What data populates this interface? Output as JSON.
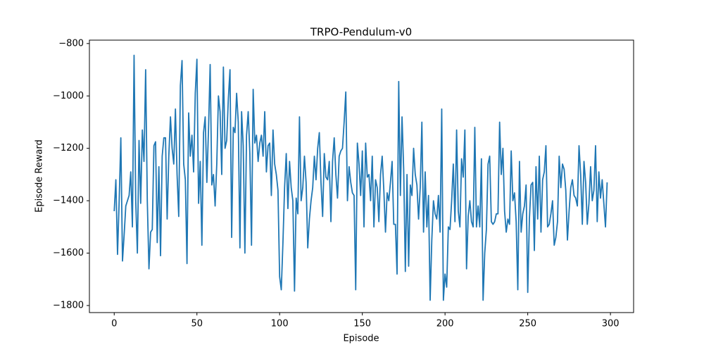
{
  "chart_data": {
    "type": "line",
    "title": "TRPO-Pendulum-v0",
    "x_label": "Episode",
    "y_label": "Episode Reward",
    "xlim": [
      -15,
      314
    ],
    "ylim": [
      -1827,
      -787
    ],
    "xticks": [
      0,
      50,
      100,
      150,
      200,
      250,
      300
    ],
    "yticks": [
      {
        "value": -1800,
        "label": "−1800"
      },
      {
        "value": -1600,
        "label": "−1600"
      },
      {
        "value": -1400,
        "label": "−1400"
      },
      {
        "value": -1200,
        "label": "−1200"
      },
      {
        "value": -1000,
        "label": "−1000"
      },
      {
        "value": -800,
        "label": "−800"
      }
    ],
    "x": [
      0,
      1,
      2,
      3,
      4,
      5,
      6,
      7,
      8,
      9,
      10,
      11,
      12,
      13,
      14,
      15,
      16,
      17,
      18,
      19,
      20,
      21,
      22,
      23,
      24,
      25,
      26,
      27,
      28,
      29,
      30,
      31,
      32,
      33,
      34,
      35,
      36,
      37,
      38,
      39,
      40,
      41,
      42,
      43,
      44,
      45,
      46,
      47,
      48,
      49,
      50,
      51,
      52,
      53,
      54,
      55,
      56,
      57,
      58,
      59,
      60,
      61,
      62,
      63,
      64,
      65,
      66,
      67,
      68,
      69,
      70,
      71,
      72,
      73,
      74,
      75,
      76,
      77,
      78,
      79,
      80,
      81,
      82,
      83,
      84,
      85,
      86,
      87,
      88,
      89,
      90,
      91,
      92,
      93,
      94,
      95,
      96,
      97,
      98,
      99,
      100,
      101,
      102,
      103,
      104,
      105,
      106,
      107,
      108,
      109,
      110,
      111,
      112,
      113,
      114,
      115,
      116,
      117,
      118,
      119,
      120,
      121,
      122,
      123,
      124,
      125,
      126,
      127,
      128,
      129,
      130,
      131,
      132,
      133,
      134,
      135,
      136,
      137,
      138,
      139,
      140,
      141,
      142,
      143,
      144,
      145,
      146,
      147,
      148,
      149,
      150,
      151,
      152,
      153,
      154,
      155,
      156,
      157,
      158,
      159,
      160,
      161,
      162,
      163,
      164,
      165,
      166,
      167,
      168,
      169,
      170,
      171,
      172,
      173,
      174,
      175,
      176,
      177,
      178,
      179,
      180,
      181,
      182,
      183,
      184,
      185,
      186,
      187,
      188,
      189,
      190,
      191,
      192,
      193,
      194,
      195,
      196,
      197,
      198,
      199,
      200,
      201,
      202,
      203,
      204,
      205,
      206,
      207,
      208,
      209,
      210,
      211,
      212,
      213,
      214,
      215,
      216,
      217,
      218,
      219,
      220,
      221,
      222,
      223,
      224,
      225,
      226,
      227,
      228,
      229,
      230,
      231,
      232,
      233,
      234,
      235,
      236,
      237,
      238,
      239,
      240,
      241,
      242,
      243,
      244,
      245,
      246,
      247,
      248,
      249,
      250,
      251,
      252,
      253,
      254,
      255,
      256,
      257,
      258,
      259,
      260,
      261,
      262,
      263,
      264,
      265,
      266,
      267,
      268,
      269,
      270,
      271,
      272,
      273,
      274,
      275,
      276,
      277,
      278,
      279,
      280,
      281,
      282,
      283,
      284,
      285,
      286,
      287,
      288,
      289,
      290,
      291,
      292,
      293,
      294,
      295,
      296,
      297,
      298
    ],
    "series": [
      {
        "color": "#1f77b4",
        "values": [
          -1440,
          -1320,
          -1605,
          -1400,
          -1160,
          -1630,
          -1530,
          -1420,
          -1400,
          -1380,
          -1290,
          -1500,
          -845,
          -1400,
          -1600,
          -1170,
          -1410,
          -1130,
          -1250,
          -900,
          -1400,
          -1660,
          -1520,
          -1510,
          -1190,
          -1175,
          -1560,
          -1270,
          -1610,
          -1230,
          -1160,
          -1160,
          -1470,
          -1230,
          -1080,
          -1200,
          -1260,
          -1050,
          -1300,
          -1460,
          -960,
          -865,
          -1260,
          -1320,
          -1640,
          -1065,
          -1230,
          -1150,
          -1290,
          -990,
          -860,
          -1410,
          -1250,
          -1570,
          -1140,
          -1080,
          -1330,
          -1130,
          -880,
          -1340,
          -1300,
          -1420,
          -1260,
          -1000,
          -1060,
          -1300,
          -890,
          -1200,
          -1170,
          -1010,
          -900,
          -1540,
          -1120,
          -1140,
          -990,
          -1100,
          -1580,
          -1060,
          -1190,
          -1600,
          -1150,
          -1060,
          -1220,
          -1570,
          -975,
          -1180,
          -1150,
          -1250,
          -1180,
          -1150,
          -1230,
          -1060,
          -1290,
          -1190,
          -1180,
          -1380,
          -1130,
          -1260,
          -1300,
          -1360,
          -1690,
          -1740,
          -1560,
          -1350,
          -1220,
          -1430,
          -1250,
          -1350,
          -1400,
          -1745,
          -1390,
          -1450,
          -1080,
          -1400,
          -1350,
          -1230,
          -1330,
          -1580,
          -1470,
          -1400,
          -1350,
          -1230,
          -1320,
          -1200,
          -1140,
          -1330,
          -1460,
          -1220,
          -1310,
          -1320,
          -1250,
          -1480,
          -1250,
          -1160,
          -1300,
          -1390,
          -1230,
          -1210,
          -1200,
          -1100,
          -985,
          -1400,
          -1270,
          -1330,
          -1370,
          -1380,
          -1740,
          -1180,
          -1260,
          -1380,
          -1210,
          -1500,
          -1180,
          -1310,
          -1300,
          -1400,
          -1230,
          -1500,
          -1320,
          -1350,
          -1480,
          -1300,
          -1230,
          -1360,
          -1520,
          -1370,
          -1400,
          -1330,
          -1250,
          -1490,
          -1490,
          -1680,
          -945,
          -1380,
          -1080,
          -1280,
          -1670,
          -1300,
          -1650,
          -1340,
          -1380,
          -1200,
          -1300,
          -1340,
          -1470,
          -1350,
          -1100,
          -1520,
          -1290,
          -1500,
          -1380,
          -1780,
          -1550,
          -1400,
          -1450,
          -1470,
          -1380,
          -1520,
          -1050,
          -1780,
          -1680,
          -1730,
          -1500,
          -1510,
          -1400,
          -1260,
          -1480,
          -1130,
          -1440,
          -1500,
          -1240,
          -1310,
          -1130,
          -1660,
          -1460,
          -1400,
          -1480,
          -1500,
          -1120,
          -1500,
          -1420,
          -1500,
          -1240,
          -1780,
          -1600,
          -1510,
          -1260,
          -1230,
          -1480,
          -1490,
          -1480,
          -1450,
          -1450,
          -1100,
          -1300,
          -1200,
          -1440,
          -1520,
          -1470,
          -1490,
          -1210,
          -1400,
          -1370,
          -1480,
          -1740,
          -1250,
          -1520,
          -1450,
          -1420,
          -1340,
          -1750,
          -1470,
          -1340,
          -1330,
          -1590,
          -1270,
          -1470,
          -1230,
          -1520,
          -1320,
          -1290,
          -1190,
          -1500,
          -1490,
          -1450,
          -1400,
          -1570,
          -1540,
          -1480,
          -1230,
          -1350,
          -1260,
          -1280,
          -1360,
          -1550,
          -1440,
          -1350,
          -1320,
          -1380,
          -1390,
          -1420,
          -1190,
          -1300,
          -1490,
          -1250,
          -1330,
          -1490,
          -1410,
          -1270,
          -1400,
          -1360,
          -1190,
          -1480,
          -1290,
          -1390,
          -1320,
          -1410,
          -1500,
          -1330
        ]
      }
    ]
  }
}
